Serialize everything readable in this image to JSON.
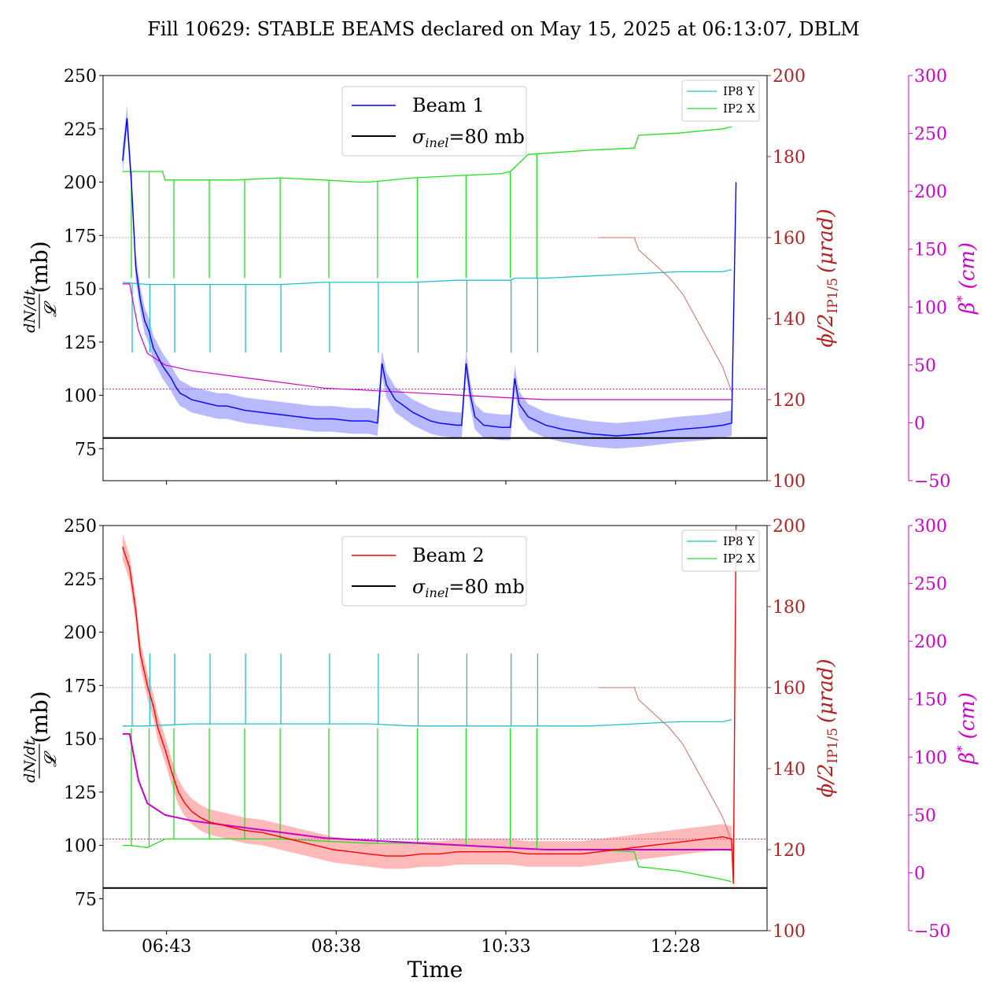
{
  "title": "Fill 10629: STABLE BEAMS declared on May 15, 2025 at 06:13:07, DBLM",
  "colors": {
    "beam1": "#0000ff",
    "beam1_band": "#8080ff",
    "beam2": "#ff0000",
    "beam2_band": "#ff8080",
    "sigma": "#000000",
    "ip8y": "#20c0c8",
    "ip2x": "#20e020",
    "crossing": "#c87060",
    "beta": "#cc00cc"
  },
  "chart_data": [
    {
      "type": "line",
      "name": "top",
      "xlabel": "",
      "ylabel_num": "dN/dt",
      "ylabel_den": "𝓛",
      "ylabel_unit": "(mb)",
      "ylim": [
        60,
        250
      ],
      "xlim": [
        "06:00",
        "13:30"
      ],
      "xticks": [
        "06:43",
        "08:38",
        "10:33",
        "12:28"
      ],
      "yticks_left": [
        "75",
        "100",
        "125",
        "150",
        "175",
        "200",
        "225",
        "250"
      ],
      "right1_label": "ϕ/2",
      "right1_sub": "IP1/5",
      "right1_unit": "(μrad)",
      "right1_lim": [
        100,
        200
      ],
      "right1_ticks": [
        "100",
        "120",
        "140",
        "160",
        "180",
        "200"
      ],
      "right2_label": "β",
      "right2_sup": "*",
      "right2_unit": "(cm)",
      "right2_lim": [
        -50,
        300
      ],
      "right2_ticks": [
        "−50",
        "0",
        "50",
        "100",
        "150",
        "200",
        "250",
        "300"
      ],
      "legend_main": [
        {
          "label": "Beam 1",
          "kind": "beam"
        },
        {
          "label_symbol": "σ",
          "label_sub": "inel",
          "label_rest": "=80 mb",
          "kind": "sigma"
        }
      ],
      "legend_small": [
        {
          "label": "IP8 Y",
          "kind": "ip8y"
        },
        {
          "label": "IP2 X",
          "kind": "ip2x"
        }
      ],
      "sigma_inel": 80,
      "crossing_ref_mb": 174,
      "beta_ref_mb": 103,
      "beam_series": [
        [
          6.22,
          210
        ],
        [
          6.27,
          230
        ],
        [
          6.32,
          200
        ],
        [
          6.37,
          160
        ],
        [
          6.42,
          145
        ],
        [
          6.47,
          135
        ],
        [
          6.52,
          130
        ],
        [
          6.57,
          122
        ],
        [
          6.62,
          118
        ],
        [
          6.67,
          114
        ],
        [
          6.72,
          111
        ],
        [
          6.77,
          108
        ],
        [
          6.82,
          104
        ],
        [
          6.87,
          101
        ],
        [
          6.92,
          100
        ],
        [
          7.0,
          98
        ],
        [
          7.1,
          97
        ],
        [
          7.2,
          96
        ],
        [
          7.3,
          95
        ],
        [
          7.4,
          95
        ],
        [
          7.5,
          94
        ],
        [
          7.6,
          93
        ],
        [
          7.8,
          92
        ],
        [
          8.0,
          91
        ],
        [
          8.2,
          90
        ],
        [
          8.4,
          89
        ],
        [
          8.6,
          89
        ],
        [
          8.8,
          88
        ],
        [
          9.0,
          88
        ],
        [
          9.1,
          87
        ],
        [
          9.15,
          115
        ],
        [
          9.2,
          105
        ],
        [
          9.3,
          98
        ],
        [
          9.4,
          95
        ],
        [
          9.5,
          92
        ],
        [
          9.6,
          90
        ],
        [
          9.7,
          88
        ],
        [
          9.8,
          87
        ],
        [
          10.0,
          86
        ],
        [
          10.05,
          86
        ],
        [
          10.1,
          115
        ],
        [
          10.15,
          100
        ],
        [
          10.2,
          90
        ],
        [
          10.3,
          86
        ],
        [
          10.5,
          85
        ],
        [
          10.6,
          85
        ],
        [
          10.65,
          108
        ],
        [
          10.7,
          96
        ],
        [
          10.8,
          90
        ],
        [
          10.9,
          88
        ],
        [
          11.0,
          86
        ],
        [
          11.2,
          84
        ],
        [
          11.5,
          82
        ],
        [
          11.8,
          81
        ],
        [
          12.1,
          82
        ],
        [
          12.3,
          83
        ],
        [
          12.5,
          84
        ],
        [
          12.8,
          85
        ],
        [
          13.0,
          86
        ],
        [
          13.1,
          87
        ],
        [
          13.15,
          200
        ]
      ],
      "ip8y_series": [
        [
          6.22,
          153
        ],
        [
          6.5,
          152
        ],
        [
          7.0,
          152
        ],
        [
          7.5,
          152
        ],
        [
          8.0,
          152
        ],
        [
          8.5,
          153
        ],
        [
          9.0,
          153
        ],
        [
          9.5,
          153
        ],
        [
          10.0,
          154
        ],
        [
          10.5,
          154
        ],
        [
          10.6,
          154
        ],
        [
          10.65,
          155
        ],
        [
          11.0,
          155
        ],
        [
          11.5,
          156
        ],
        [
          12.0,
          157
        ],
        [
          12.5,
          158
        ],
        [
          13.0,
          158
        ],
        [
          13.1,
          159
        ]
      ],
      "ip2x_series": [
        [
          6.22,
          205
        ],
        [
          6.5,
          205
        ],
        [
          6.67,
          205
        ],
        [
          6.7,
          201
        ],
        [
          7.0,
          201
        ],
        [
          7.5,
          201
        ],
        [
          8.0,
          202
        ],
        [
          8.5,
          201
        ],
        [
          8.9,
          200
        ],
        [
          9.0,
          200
        ],
        [
          9.5,
          202
        ],
        [
          10.0,
          203
        ],
        [
          10.5,
          204
        ],
        [
          10.6,
          205
        ],
        [
          10.8,
          213
        ],
        [
          11.5,
          215
        ],
        [
          12.0,
          216
        ],
        [
          12.05,
          222
        ],
        [
          12.5,
          223
        ],
        [
          13.0,
          225
        ],
        [
          13.1,
          226
        ]
      ],
      "ip_dips": [
        6.32,
        6.52,
        6.8,
        7.2,
        7.6,
        8.0,
        8.55,
        9.1,
        9.55,
        10.1,
        10.6,
        10.9
      ],
      "crossing_series": [
        [
          11.6,
          160
        ],
        [
          12.0,
          160
        ],
        [
          12.05,
          157
        ],
        [
          12.2,
          154
        ],
        [
          12.4,
          150
        ],
        [
          12.55,
          146
        ],
        [
          12.7,
          140
        ],
        [
          12.85,
          134
        ],
        [
          13.0,
          128
        ],
        [
          13.1,
          122
        ]
      ],
      "beta_series": [
        [
          6.22,
          120
        ],
        [
          6.3,
          120
        ],
        [
          6.4,
          80
        ],
        [
          6.5,
          60
        ],
        [
          6.7,
          50
        ],
        [
          7.0,
          45
        ],
        [
          7.5,
          40
        ],
        [
          8.0,
          35
        ],
        [
          8.5,
          30
        ],
        [
          9.0,
          28
        ],
        [
          9.5,
          26
        ],
        [
          10.0,
          24
        ],
        [
          10.5,
          22
        ],
        [
          11.0,
          20
        ],
        [
          12.0,
          20
        ],
        [
          13.1,
          20
        ]
      ]
    },
    {
      "type": "line",
      "name": "bottom",
      "xlabel": "Time",
      "ylabel_num": "dN/dt",
      "ylabel_den": "𝓛",
      "ylabel_unit": "(mb)",
      "ylim": [
        60,
        250
      ],
      "xlim": [
        "06:00",
        "13:30"
      ],
      "xticks": [
        "06:43",
        "08:38",
        "10:33",
        "12:28"
      ],
      "yticks_left": [
        "75",
        "100",
        "125",
        "150",
        "175",
        "200",
        "225",
        "250"
      ],
      "right1_label": "ϕ/2",
      "right1_sub": "IP1/5",
      "right1_unit": "(μrad)",
      "right1_lim": [
        100,
        200
      ],
      "right1_ticks": [
        "100",
        "120",
        "140",
        "160",
        "180",
        "200"
      ],
      "right2_label": "β",
      "right2_sup": "*",
      "right2_unit": "(cm)",
      "right2_lim": [
        -50,
        300
      ],
      "right2_ticks": [
        "−50",
        "0",
        "50",
        "100",
        "150",
        "200",
        "250",
        "300"
      ],
      "legend_main": [
        {
          "label": "Beam 2",
          "kind": "beam"
        },
        {
          "label_symbol": "σ",
          "label_sub": "inel",
          "label_rest": "=80 mb",
          "kind": "sigma"
        }
      ],
      "legend_small": [
        {
          "label": "IP8 Y",
          "kind": "ip8y"
        },
        {
          "label": "IP2 X",
          "kind": "ip2x"
        }
      ],
      "sigma_inel": 80,
      "crossing_ref_mb": 174,
      "beta_ref_mb": 103,
      "beam_series": [
        [
          6.22,
          240
        ],
        [
          6.3,
          230
        ],
        [
          6.37,
          210
        ],
        [
          6.42,
          190
        ],
        [
          6.5,
          175
        ],
        [
          6.57,
          165
        ],
        [
          6.62,
          155
        ],
        [
          6.7,
          145
        ],
        [
          6.77,
          135
        ],
        [
          6.85,
          125
        ],
        [
          6.92,
          120
        ],
        [
          7.0,
          116
        ],
        [
          7.1,
          113
        ],
        [
          7.2,
          111
        ],
        [
          7.3,
          110
        ],
        [
          7.4,
          109
        ],
        [
          7.5,
          108
        ],
        [
          7.6,
          107
        ],
        [
          7.8,
          106
        ],
        [
          8.0,
          104
        ],
        [
          8.2,
          102
        ],
        [
          8.4,
          100
        ],
        [
          8.6,
          98
        ],
        [
          8.8,
          97
        ],
        [
          9.0,
          96
        ],
        [
          9.2,
          95
        ],
        [
          9.4,
          95
        ],
        [
          9.6,
          96
        ],
        [
          9.8,
          96
        ],
        [
          10.0,
          97
        ],
        [
          10.2,
          97
        ],
        [
          10.4,
          97
        ],
        [
          10.6,
          97
        ],
        [
          10.8,
          96
        ],
        [
          11.0,
          96
        ],
        [
          11.2,
          96
        ],
        [
          11.4,
          96
        ],
        [
          11.6,
          97
        ],
        [
          11.8,
          98
        ],
        [
          12.0,
          99
        ],
        [
          12.2,
          100
        ],
        [
          12.4,
          101
        ],
        [
          12.6,
          102
        ],
        [
          12.8,
          103
        ],
        [
          13.0,
          104
        ],
        [
          13.1,
          103
        ],
        [
          13.12,
          82
        ],
        [
          13.15,
          250
        ]
      ],
      "ip8y_series": [
        [
          6.22,
          156
        ],
        [
          6.5,
          156
        ],
        [
          7.0,
          157
        ],
        [
          7.5,
          157
        ],
        [
          8.0,
          157
        ],
        [
          8.5,
          157
        ],
        [
          9.0,
          157
        ],
        [
          9.5,
          156
        ],
        [
          10.0,
          156
        ],
        [
          10.5,
          156
        ],
        [
          11.0,
          156
        ],
        [
          11.5,
          156
        ],
        [
          12.0,
          157
        ],
        [
          12.5,
          158
        ],
        [
          13.0,
          158
        ],
        [
          13.1,
          159
        ]
      ],
      "ip2x_series": [
        [
          6.22,
          100
        ],
        [
          6.3,
          100
        ],
        [
          6.5,
          99
        ],
        [
          6.7,
          103
        ],
        [
          7.0,
          103
        ],
        [
          7.5,
          103
        ],
        [
          8.0,
          103
        ],
        [
          8.5,
          102
        ],
        [
          9.0,
          101
        ],
        [
          9.5,
          101
        ],
        [
          10.0,
          100
        ],
        [
          10.5,
          99
        ],
        [
          11.0,
          98
        ],
        [
          11.5,
          98
        ],
        [
          12.0,
          97
        ],
        [
          12.05,
          90
        ],
        [
          12.5,
          88
        ],
        [
          13.0,
          84
        ],
        [
          13.1,
          83
        ]
      ],
      "ip_dips": [
        6.32,
        6.52,
        6.8,
        7.2,
        7.6,
        8.0,
        8.55,
        9.1,
        9.55,
        10.1,
        10.6,
        10.9
      ],
      "crossing_series": [
        [
          11.6,
          160
        ],
        [
          12.0,
          160
        ],
        [
          12.05,
          157
        ],
        [
          12.2,
          154
        ],
        [
          12.4,
          150
        ],
        [
          12.55,
          146
        ],
        [
          12.7,
          140
        ],
        [
          12.85,
          134
        ],
        [
          13.0,
          128
        ],
        [
          13.1,
          122
        ]
      ],
      "beta_series": [
        [
          6.22,
          120
        ],
        [
          6.3,
          120
        ],
        [
          6.4,
          80
        ],
        [
          6.5,
          60
        ],
        [
          6.7,
          50
        ],
        [
          7.0,
          45
        ],
        [
          7.5,
          40
        ],
        [
          8.0,
          35
        ],
        [
          8.5,
          30
        ],
        [
          9.0,
          28
        ],
        [
          9.5,
          26
        ],
        [
          10.0,
          24
        ],
        [
          10.5,
          22
        ],
        [
          11.0,
          20
        ],
        [
          12.0,
          20
        ],
        [
          13.1,
          20
        ]
      ]
    }
  ]
}
